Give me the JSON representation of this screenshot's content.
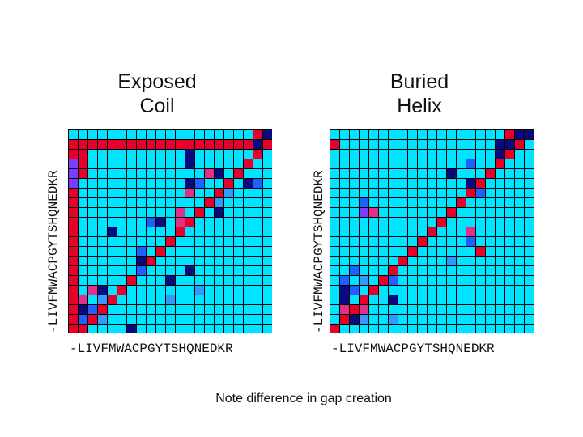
{
  "axis_label": "-LIVFMWACPGYTSHQNEDKR",
  "panels": [
    {
      "title_line1": "Exposed",
      "title_line2": "Coil",
      "base_color": "#00e5ff",
      "grid": [
        "bbbbbbbbbbbbbbbbbbbbb",
        "rrrrrrrrrrrrrrrrrrrrr",
        "rrbbbbbbbbbbbbbbbbbbb",
        "rrbbbbbbbbbbbbbbbbbbb",
        "rrbbbbbbbbbbbbbbbbbbb",
        "rbbbbbbbbbbbbbbbbbbbb",
        "rbbbbbbbbbbbbbbbbbbbb",
        "rbbbbbbbbbbbbbbbbbbbb",
        "rbbbbbbbbbbbbbbbbbbbb",
        "rbbbbbbbbbbbbbbbbbbbb",
        "rbbbbbbbbbbbbbbbbbbbb",
        "rbbbbbbbbbbbbbbbbbbbb",
        "rbbbbbbbbbbbbbbbbbbbb",
        "rbbbbbbbbbbbbbbbbbbbb",
        "rbbbbbbbbbbbbbbbbbbbb",
        "rbbbbbbbbbbbbbbbbbbbb",
        "rbbbbbbbbbbbbbbbbbbbb",
        "rbbbbbbbbbbbbbbbbbbbb",
        "rbbbbbbbbbbbbbbbbbbbb",
        "rbbbbbbbbbbbbbbbbbbbb",
        "rbbbbbbbbbbbbbbbbbbbb"
      ],
      "marks": [
        {
          "r": 20,
          "c": 1,
          "k": "red"
        },
        {
          "r": 19,
          "c": 2,
          "k": "red"
        },
        {
          "r": 18,
          "c": 3,
          "k": "red"
        },
        {
          "r": 17,
          "c": 4,
          "k": "red"
        },
        {
          "r": 16,
          "c": 5,
          "k": "red"
        },
        {
          "r": 15,
          "c": 6,
          "k": "red"
        },
        {
          "r": 14,
          "c": 7,
          "k": "red"
        },
        {
          "r": 13,
          "c": 8,
          "k": "red"
        },
        {
          "r": 12,
          "c": 9,
          "k": "red"
        },
        {
          "r": 11,
          "c": 10,
          "k": "red"
        },
        {
          "r": 10,
          "c": 11,
          "k": "red"
        },
        {
          "r": 9,
          "c": 12,
          "k": "red"
        },
        {
          "r": 8,
          "c": 13,
          "k": "red"
        },
        {
          "r": 7,
          "c": 14,
          "k": "red"
        },
        {
          "r": 6,
          "c": 15,
          "k": "red"
        },
        {
          "r": 5,
          "c": 16,
          "k": "red"
        },
        {
          "r": 4,
          "c": 17,
          "k": "red"
        },
        {
          "r": 3,
          "c": 18,
          "k": "red"
        },
        {
          "r": 2,
          "c": 19,
          "k": "red"
        },
        {
          "r": 1,
          "c": 20,
          "k": "red"
        },
        {
          "r": 0,
          "c": 20,
          "k": "navy"
        },
        {
          "r": 0,
          "c": 19,
          "k": "red"
        },
        {
          "r": 1,
          "c": 19,
          "k": "navy"
        },
        {
          "r": 2,
          "c": 12,
          "k": "navy"
        },
        {
          "r": 3,
          "c": 12,
          "k": "navy"
        },
        {
          "r": 4,
          "c": 14,
          "k": "pink"
        },
        {
          "r": 4,
          "c": 15,
          "k": "navy"
        },
        {
          "r": 5,
          "c": 12,
          "k": "navy"
        },
        {
          "r": 5,
          "c": 13,
          "k": "blue"
        },
        {
          "r": 5,
          "c": 18,
          "k": "navy"
        },
        {
          "r": 5,
          "c": 19,
          "k": "blue"
        },
        {
          "r": 6,
          "c": 12,
          "k": "pink"
        },
        {
          "r": 6,
          "c": 16,
          "k": "mid"
        },
        {
          "r": 7,
          "c": 15,
          "k": "mid"
        },
        {
          "r": 8,
          "c": 11,
          "k": "pink"
        },
        {
          "r": 8,
          "c": 15,
          "k": "navy"
        },
        {
          "r": 9,
          "c": 8,
          "k": "blue"
        },
        {
          "r": 9,
          "c": 9,
          "k": "navy"
        },
        {
          "r": 9,
          "c": 11,
          "k": "pink"
        },
        {
          "r": 10,
          "c": 4,
          "k": "navy"
        },
        {
          "r": 12,
          "c": 7,
          "k": "blue"
        },
        {
          "r": 13,
          "c": 7,
          "k": "navy"
        },
        {
          "r": 14,
          "c": 7,
          "k": "blue"
        },
        {
          "r": 14,
          "c": 12,
          "k": "navy"
        },
        {
          "r": 15,
          "c": 10,
          "k": "navy"
        },
        {
          "r": 16,
          "c": 2,
          "k": "pink"
        },
        {
          "r": 16,
          "c": 3,
          "k": "navy"
        },
        {
          "r": 16,
          "c": 13,
          "k": "mid"
        },
        {
          "r": 17,
          "c": 1,
          "k": "pink"
        },
        {
          "r": 17,
          "c": 3,
          "k": "mid"
        },
        {
          "r": 17,
          "c": 10,
          "k": "mid"
        },
        {
          "r": 18,
          "c": 1,
          "k": "navy"
        },
        {
          "r": 18,
          "c": 2,
          "k": "blue"
        },
        {
          "r": 19,
          "c": 1,
          "k": "blue"
        },
        {
          "r": 19,
          "c": 3,
          "k": "mid"
        },
        {
          "r": 20,
          "c": 6,
          "k": "navy"
        },
        {
          "r": 3,
          "c": 0,
          "k": "purple"
        },
        {
          "r": 4,
          "c": 0,
          "k": "purple"
        },
        {
          "r": 5,
          "c": 0,
          "k": "purple"
        }
      ]
    },
    {
      "title_line1": "Buried",
      "title_line2": "Helix",
      "base_color": "#00e5ff",
      "grid": [
        "bbbbbbbbbbbbbbbbbbbbb",
        "rbbbbbbbbbbbbbbbbbbbb",
        "bbbbbbbbbbbbbbbbbbbbb",
        "bbbbbbbbbbbbbbbbbbbbb",
        "bbbbbbbbbbbbbbbbbbbbb",
        "bbbbbbbbbbbbbbbbbbbbb",
        "bbbbbbbbbbbbbbbbbbbbb",
        "bbbbbbbbbbbbbbbbbbbbb",
        "bbbbbbbbbbbbbbbbbbbbb",
        "bbbbbbbbbbbbbbbbbbbbb",
        "bbbbbbbbbbbbbbbbbbbbb",
        "bbbbbbbbbbbbbbbbbbbbb",
        "bbbbbbbbbbbbbbbbbbbbb",
        "bbbbbbbbbbbbbbbbbbbbb",
        "bbbbbbbbbbbbbbbbbbbbb",
        "bbbbbbbbbbbbbbbbbbbbb",
        "bbbbbbbbbbbbbbbbbbbbb",
        "bbbbbbbbbbbbbbbbbbbbb",
        "bbbbbbbbbbbbbbbbbbbbb",
        "bbbbbbbbbbbbbbbbbbbbb",
        "bbbbbbbbbbbbbbbbbbbbb"
      ],
      "marks": [
        {
          "r": 20,
          "c": 0,
          "k": "red"
        },
        {
          "r": 19,
          "c": 1,
          "k": "red"
        },
        {
          "r": 18,
          "c": 2,
          "k": "red"
        },
        {
          "r": 17,
          "c": 3,
          "k": "red"
        },
        {
          "r": 16,
          "c": 4,
          "k": "red"
        },
        {
          "r": 15,
          "c": 5,
          "k": "red"
        },
        {
          "r": 14,
          "c": 6,
          "k": "red"
        },
        {
          "r": 13,
          "c": 7,
          "k": "red"
        },
        {
          "r": 12,
          "c": 8,
          "k": "red"
        },
        {
          "r": 11,
          "c": 9,
          "k": "red"
        },
        {
          "r": 10,
          "c": 10,
          "k": "red"
        },
        {
          "r": 9,
          "c": 11,
          "k": "red"
        },
        {
          "r": 8,
          "c": 12,
          "k": "red"
        },
        {
          "r": 7,
          "c": 13,
          "k": "red"
        },
        {
          "r": 6,
          "c": 14,
          "k": "red"
        },
        {
          "r": 5,
          "c": 15,
          "k": "red"
        },
        {
          "r": 4,
          "c": 16,
          "k": "red"
        },
        {
          "r": 3,
          "c": 17,
          "k": "red"
        },
        {
          "r": 2,
          "c": 18,
          "k": "red"
        },
        {
          "r": 1,
          "c": 19,
          "k": "red"
        },
        {
          "r": 0,
          "c": 19,
          "k": "navy"
        },
        {
          "r": 0,
          "c": 20,
          "k": "navy"
        },
        {
          "r": 0,
          "c": 18,
          "k": "red"
        },
        {
          "r": 1,
          "c": 17,
          "k": "navy"
        },
        {
          "r": 2,
          "c": 17,
          "k": "navy"
        },
        {
          "r": 1,
          "c": 18,
          "k": "navy"
        },
        {
          "r": 3,
          "c": 14,
          "k": "blue"
        },
        {
          "r": 4,
          "c": 12,
          "k": "navy"
        },
        {
          "r": 5,
          "c": 14,
          "k": "navy"
        },
        {
          "r": 6,
          "c": 15,
          "k": "blue"
        },
        {
          "r": 7,
          "c": 3,
          "k": "blue"
        },
        {
          "r": 8,
          "c": 3,
          "k": "purple"
        },
        {
          "r": 8,
          "c": 4,
          "k": "pink"
        },
        {
          "r": 10,
          "c": 14,
          "k": "pink"
        },
        {
          "r": 11,
          "c": 14,
          "k": "blue"
        },
        {
          "r": 12,
          "c": 15,
          "k": "red"
        },
        {
          "r": 13,
          "c": 12,
          "k": "mid"
        },
        {
          "r": 14,
          "c": 2,
          "k": "blue"
        },
        {
          "r": 15,
          "c": 1,
          "k": "blue"
        },
        {
          "r": 15,
          "c": 3,
          "k": "mid"
        },
        {
          "r": 15,
          "c": 6,
          "k": "blue"
        },
        {
          "r": 16,
          "c": 1,
          "k": "navy"
        },
        {
          "r": 16,
          "c": 2,
          "k": "blue"
        },
        {
          "r": 17,
          "c": 1,
          "k": "navy"
        },
        {
          "r": 17,
          "c": 6,
          "k": "navy"
        },
        {
          "r": 18,
          "c": 1,
          "k": "pink"
        },
        {
          "r": 18,
          "c": 3,
          "k": "pink"
        },
        {
          "r": 19,
          "c": 2,
          "k": "navy"
        },
        {
          "r": 19,
          "c": 3,
          "k": "mid"
        },
        {
          "r": 19,
          "c": 6,
          "k": "mid"
        }
      ]
    }
  ],
  "note": "Note difference in gap creation"
}
